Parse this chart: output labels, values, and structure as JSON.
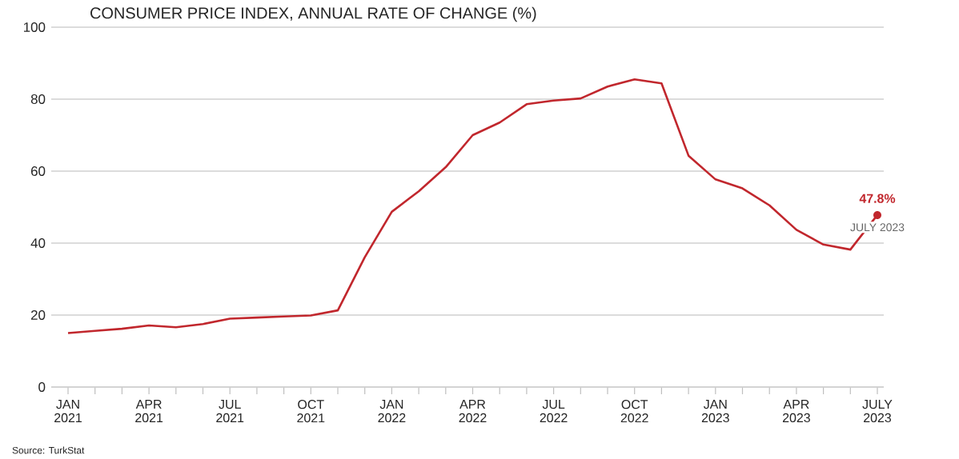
{
  "chart_data": {
    "type": "line",
    "title": "CONSUMER PRICE INDEX, ANNUAL RATE OF CHANGE (%)",
    "categories": [
      "JAN 2021",
      null,
      null,
      "APR 2021",
      null,
      null,
      "JUL 2021",
      null,
      null,
      "OCT 2021",
      null,
      null,
      "JAN 2022",
      null,
      null,
      "APR 2022",
      null,
      null,
      "JUL 2022",
      null,
      null,
      "OCT 2022",
      null,
      null,
      "JAN 2023",
      null,
      null,
      "APR 2023",
      null,
      null,
      "JULY 2023"
    ],
    "series": [
      {
        "color": "#c1272d",
        "values": [
          15.0,
          15.6,
          16.2,
          17.1,
          16.6,
          17.5,
          19.0,
          19.3,
          19.6,
          19.9,
          21.3,
          36.1,
          48.7,
          54.4,
          61.1,
          70.0,
          73.5,
          78.6,
          79.6,
          80.2,
          83.5,
          85.5,
          84.4,
          64.3,
          57.7,
          55.2,
          50.5,
          43.7,
          39.6,
          38.2,
          47.8
        ]
      }
    ],
    "ylim": [
      0,
      100
    ],
    "yticks": [
      0,
      20,
      40,
      60,
      80,
      100
    ],
    "grid": "y",
    "line_style": "solid",
    "annotations": [
      {
        "text": "47.8%",
        "x": "JULY 2023",
        "y": 47.8
      },
      {
        "text": "JULY 2023",
        "x": "JULY 2023",
        "y": 47.8
      },
      "Source: TurkStat"
    ]
  }
}
